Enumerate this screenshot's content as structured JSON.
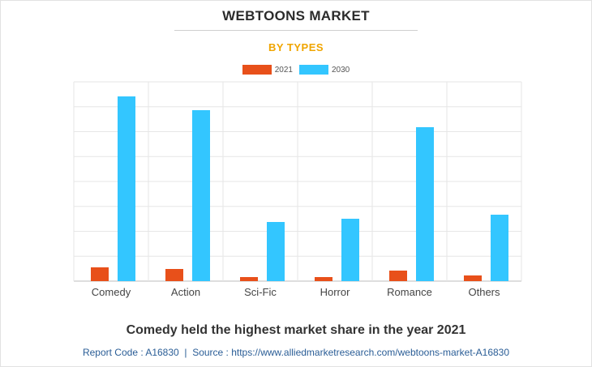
{
  "header": {
    "title": "WEBTOONS MARKET",
    "subtitle": "BY TYPES"
  },
  "chart_data": {
    "type": "bar",
    "categories": [
      "Comedy",
      "Action",
      "Sci-Fic",
      "Horror",
      "Romance",
      "Others"
    ],
    "series": [
      {
        "name": "2021",
        "color": "#e8501a",
        "values": [
          17,
          15,
          5,
          5,
          13,
          7
        ]
      },
      {
        "name": "2030",
        "color": "#33c6ff",
        "values": [
          228,
          211,
          73,
          77,
          190,
          82
        ]
      }
    ],
    "ylim": [
      0,
      246
    ],
    "grid": true,
    "legend": "top-center",
    "y_tick_labels_shown": false
  },
  "footer": {
    "headline": "Comedy held the highest market share in the year 2021",
    "report_code_label": "Report Code : A16830",
    "separator": "|",
    "source_label": "Source : https://www.alliedmarketresearch.com/webtoons-market-A16830"
  }
}
